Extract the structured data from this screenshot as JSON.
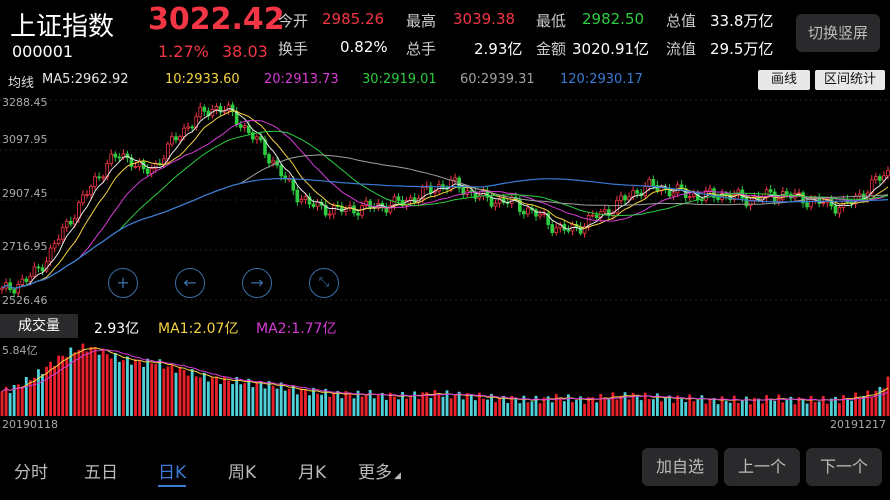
{
  "header": {
    "name": "上证指数",
    "code": "000001",
    "price": "3022.42",
    "change_pct": "1.27%",
    "change": "38.03",
    "stats": [
      {
        "label": "今开",
        "value": "2985.26",
        "color": "red"
      },
      {
        "label": "最高",
        "value": "3039.38",
        "color": "red"
      },
      {
        "label": "最低",
        "value": "2982.50",
        "color": "green"
      },
      {
        "label": "总值",
        "value": "33.8万亿",
        "color": "white"
      },
      {
        "label": "换手",
        "value": "0.82%",
        "color": "white"
      },
      {
        "label": "总手",
        "value": "2.93亿",
        "color": "white"
      },
      {
        "label": "金额",
        "value": "3020.91亿",
        "color": "white"
      },
      {
        "label": "流值",
        "value": "29.5万亿",
        "color": "white"
      }
    ],
    "toggle_label": "切换竖屏"
  },
  "ma_bar": {
    "prefix": "均线",
    "items": [
      {
        "text": "MA5:2962.92",
        "color": "#e8e8e8"
      },
      {
        "text": "10:2933.60",
        "color": "#f5d442"
      },
      {
        "text": "20:2913.73",
        "color": "#d63bd6"
      },
      {
        "text": "30:2919.01",
        "color": "#2ecc40"
      },
      {
        "text": "60:2939.31",
        "color": "#a0a0a0"
      },
      {
        "text": "120:2930.17",
        "color": "#3a7bd5"
      }
    ],
    "draw_label": "画线",
    "range_label": "区间统计"
  },
  "price_axis": [
    "3288.45",
    "3097.95",
    "2907.45",
    "2716.95",
    "2526.46"
  ],
  "volume_bar": {
    "label": "成交量",
    "value": "2.93亿",
    "ma1": "MA1:2.07亿",
    "ma2": "MA2:1.77亿",
    "axis_max": "5.84亿"
  },
  "dates": {
    "start": "20190118",
    "end": "20191217"
  },
  "tabs": [
    "分时",
    "五日",
    "日K",
    "周K",
    "月K",
    "更多"
  ],
  "active_tab": "日K",
  "actions": [
    "加自选",
    "上一个",
    "下一个"
  ],
  "colors": {
    "up": "#f23645",
    "down": "#2ecc40",
    "accent": "#3a6ea5",
    "volume_up": "#e8202a",
    "volume_down": "#4fd1d9"
  },
  "icons": [
    "zoom-in-icon",
    "left-arrow-icon",
    "right-arrow-icon",
    "shrink-icon"
  ],
  "chart_data": {
    "type": "candlestick",
    "price_series": [
      2560,
      2580,
      2600,
      2640,
      2700,
      2780,
      2850,
      2920,
      2990,
      3050,
      3080,
      3060,
      3010,
      3040,
      3100,
      3160,
      3200,
      3240,
      3260,
      3250,
      3210,
      3160,
      3110,
      3050,
      2980,
      2930,
      2890,
      2880,
      2870,
      2870,
      2875,
      2880,
      2885,
      2890,
      2900,
      2920,
      2940,
      2960,
      2970,
      2950,
      2930,
      2910,
      2905,
      2900,
      2880,
      2860,
      2830,
      2800,
      2790,
      2810,
      2840,
      2860,
      2890,
      2920,
      2950,
      2960,
      2950,
      2940,
      2930,
      2920,
      2925,
      2930,
      2920,
      2910,
      2915,
      2925,
      2930,
      2920,
      2910,
      2900,
      2890,
      2885,
      2900,
      2940,
      2980,
      3010
    ],
    "volume_series": [
      2.0,
      2.3,
      2.8,
      3.4,
      4.1,
      4.8,
      5.3,
      5.6,
      5.4,
      5.0,
      4.6,
      4.5,
      4.3,
      4.4,
      4.0,
      3.8,
      3.5,
      3.2,
      3.0,
      2.9,
      2.8,
      2.7,
      2.6,
      2.5,
      2.3,
      2.1,
      2.0,
      1.9,
      1.8,
      1.8,
      1.7,
      1.8,
      1.7,
      1.6,
      1.6,
      1.7,
      1.8,
      1.8,
      1.7,
      1.7,
      1.6,
      1.5,
      1.4,
      1.4,
      1.3,
      1.3,
      1.4,
      1.5,
      1.4,
      1.3,
      1.4,
      1.5,
      1.6,
      1.7,
      1.6,
      1.5,
      1.5,
      1.4,
      1.4,
      1.4,
      1.3,
      1.3,
      1.3,
      1.3,
      1.3,
      1.4,
      1.4,
      1.3,
      1.3,
      1.3,
      1.3,
      1.4,
      1.5,
      1.7,
      1.9,
      2.9
    ],
    "ylim": [
      2526.46,
      3288.45
    ],
    "vol_max": 5.84
  }
}
